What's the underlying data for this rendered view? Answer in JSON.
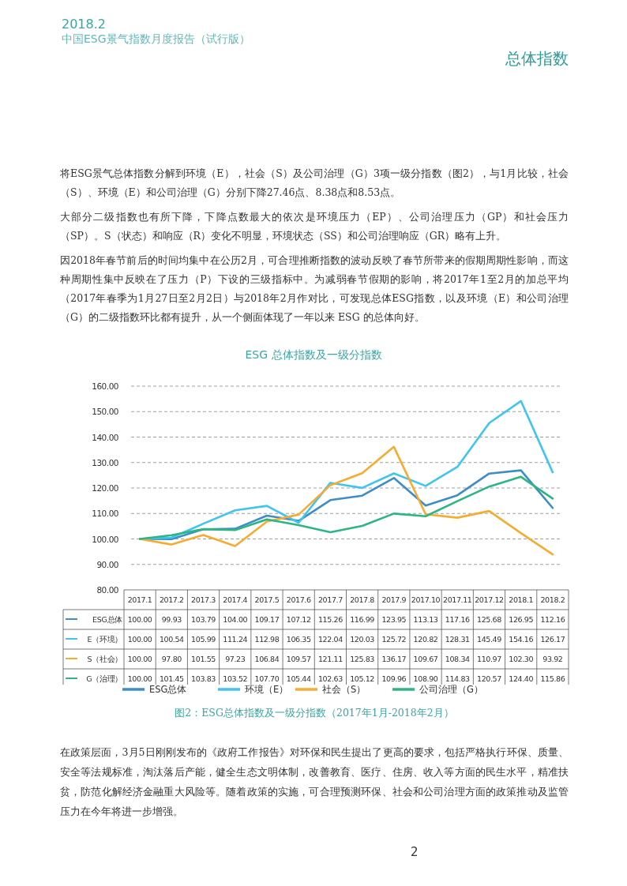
{
  "chart_data": {
    "type": "line",
    "title": "ESG  总体指数及一级分指数",
    "categories": [
      "2017.1",
      "2017.2",
      "2017.3",
      "2017.4",
      "2017.5",
      "2017.6",
      "2017.7",
      "2017.8",
      "2017.9",
      "2017.10",
      "2017.11",
      "2017.12",
      "2018.1",
      "2018.2"
    ],
    "series": [
      {
        "name": "ESG总体",
        "color": "#3c8dc8",
        "values": [
          100.0,
          99.93,
          103.79,
          104.0,
          109.17,
          107.12,
          115.26,
          116.99,
          123.95,
          113.13,
          117.16,
          125.68,
          126.95,
          112.16
        ],
        "value_labels": [
          "100.00",
          "99.93",
          "103.79",
          "104.00",
          "109.17",
          "107.12",
          "115.26",
          "116.99",
          "123.95",
          "113.13",
          "117.16",
          "125.68",
          "126.95",
          "112.16"
        ]
      },
      {
        "name": "环境（E）",
        "color": "#40c4f0",
        "values": [
          100.0,
          100.54,
          105.99,
          111.24,
          112.98,
          106.35,
          122.04,
          120.03,
          125.72,
          120.82,
          128.31,
          145.49,
          154.16,
          126.17
        ],
        "value_labels": [
          "100.00",
          "100.54",
          "105.99",
          "111.24",
          "112.98",
          "106.35",
          "122.04",
          "120.03",
          "125.72",
          "120.82",
          "128.31",
          "145.49",
          "154.16",
          "126.17"
        ]
      },
      {
        "name": "社会（S）",
        "color": "#f5ac31",
        "values": [
          100.0,
          97.8,
          101.55,
          97.23,
          106.84,
          109.57,
          121.11,
          125.83,
          136.17,
          109.67,
          108.34,
          110.97,
          102.3,
          93.92
        ],
        "value_labels": [
          "100.00",
          "97.80",
          "101.55",
          "97.23",
          "106.84",
          "109.57",
          "121.11",
          "125.83",
          "136.17",
          "109.67",
          "108.34",
          "110.97",
          "102.30",
          "93.92"
        ]
      },
      {
        "name": "公司治理（G）",
        "color": "#2db582",
        "values": [
          100.0,
          101.45,
          103.83,
          103.52,
          107.7,
          105.44,
          102.63,
          105.12,
          109.96,
          108.9,
          114.83,
          120.57,
          124.4,
          115.86
        ],
        "value_labels": [
          "100.00",
          "101.45",
          "103.83",
          "103.52",
          "107.70",
          "105.44",
          "102.63",
          "105.12",
          "109.96",
          "108.90",
          "114.83",
          "120.57",
          "124.40",
          "115.86"
        ]
      }
    ],
    "ylim": [
      80,
      160
    ],
    "yticks": [
      {
        "value": 80,
        "label": "80.00"
      },
      {
        "value": 90,
        "label": "90.00"
      },
      {
        "value": 100,
        "label": "100.00"
      },
      {
        "value": 110,
        "label": "110.00"
      },
      {
        "value": 120,
        "label": "120.00"
      },
      {
        "value": 130,
        "label": "130.00"
      },
      {
        "value": 140,
        "label": "140.00"
      },
      {
        "value": 150,
        "label": "150.00"
      },
      {
        "value": 160,
        "label": "160.00"
      }
    ],
    "grid": "y",
    "legend": "bottom",
    "line_style": "solid",
    "marker": "none",
    "annotations": [
      "2018.2",
      "中国ESG景气指数月度报告（试行版）",
      "总体指数",
      "将ESG景气总体指数分解到环境（E），社会（S）及公司治理（G）3项一级分指数（图2），与1月比较，社会（S）、环境（E）和公司治理（G）分别下降27.46点、8.38点和8.53点。",
      "大部分二级指数也有所下降，下降点数最大的依次是环境压力（EP）、公司治理压力（GP）和社会压力（SP）。S（状态）和响应（R）变化不明显，环境状态（SS）和公司治理响应（GR）略有上升。",
      "因2018年春节前后的时间均集中在公历2月，可合理推断指数的波动反映了春节所带来的假期周期性影响，而这种周期性集中反映在了压力（P）下设的三级指标中。为减弱春节假期的影响，将2017年1至2月的加总平均（2017年春季为1月27日至2月2日）与2018年2月作对比，可发现总体ESG指数，以及环境（E）和公司治理（G）的二级指数环比都有提升，从一个侧面体现了一年以来 ESG 的总体向好。",
      "图2：ESG总体指数及一级分指数（2017年1月-2018年2月）",
      "在政策层面，3月5日刚刚发布的《政府工作报告》对环保和民生提出了更高的要求，包括严格执行环保、质量、安全等法规标准，淘汰落后产能，健全生态文明体制，改善教育、医疗、住房、收入等方面的民生水平，精准扶贫，防范化解经济金融重大风险等。随着政策的实施，可合理预测环保、社会和公司治理方面的政策推动及监管压力在今年将进一步增强。",
      "2",
      "ESG总体",
      "E（环境）",
      "S（社会）",
      "G（治理）"
    ]
  }
}
